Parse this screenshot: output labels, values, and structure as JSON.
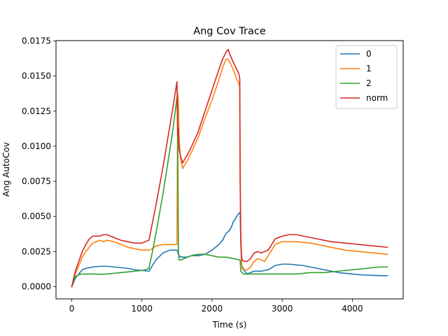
{
  "chart_data": {
    "type": "line",
    "title": "Ang Cov Trace",
    "xlabel": "Time (s)",
    "ylabel": "Ang AutoCov",
    "xlim": [
      -225,
      4725
    ],
    "ylim": [
      -0.000875,
      0.017525
    ],
    "xticks": [
      0,
      1000,
      2000,
      3000,
      4000
    ],
    "xtick_labels": [
      "0",
      "1000",
      "2000",
      "3000",
      "4000"
    ],
    "yticks": [
      0.0,
      0.0025,
      0.005,
      0.0075,
      0.01,
      0.0125,
      0.015,
      0.0175
    ],
    "ytick_labels": [
      "0.0000",
      "0.0025",
      "0.0050",
      "0.0075",
      "0.0100",
      "0.0125",
      "0.0150",
      "0.0175"
    ],
    "grid": false,
    "legend_position": "top-right",
    "series": [
      {
        "name": "0",
        "color": "#1f77b4",
        "x": [
          0,
          50,
          100,
          150,
          200,
          300,
          400,
          500,
          600,
          700,
          800,
          900,
          1000,
          1100,
          1150,
          1200,
          1300,
          1400,
          1450,
          1500,
          1510,
          1520,
          1530,
          1560,
          1600,
          1650,
          1700,
          1800,
          1900,
          2000,
          2050,
          2100,
          2150,
          2200,
          2250,
          2280,
          2300,
          2330,
          2350,
          2380,
          2400,
          2410,
          2420,
          2450,
          2500,
          2550,
          2600,
          2700,
          2800,
          2900,
          3000,
          3100,
          3200,
          3300,
          3400,
          3500,
          3600,
          3700,
          3800,
          3900,
          4000,
          4100,
          4200,
          4300,
          4400,
          4500
        ],
        "y": [
          0.0,
          0.0006,
          0.0009,
          0.0012,
          0.0013,
          0.0014,
          0.00145,
          0.00145,
          0.0014,
          0.00135,
          0.0013,
          0.0012,
          0.00115,
          0.0011,
          0.0015,
          0.0019,
          0.0024,
          0.0026,
          0.0026,
          0.0026,
          0.0025,
          0.0023,
          0.0022,
          0.0021,
          0.0021,
          0.0021,
          0.0022,
          0.0022,
          0.0023,
          0.0026,
          0.0028,
          0.003,
          0.0033,
          0.0038,
          0.004,
          0.0043,
          0.0046,
          0.0048,
          0.005,
          0.0052,
          0.0053,
          0.003,
          0.0016,
          0.0012,
          0.0009,
          0.001,
          0.0011,
          0.0011,
          0.0012,
          0.0015,
          0.0016,
          0.0016,
          0.00155,
          0.0015,
          0.0014,
          0.0013,
          0.0012,
          0.0011,
          0.001,
          0.00095,
          0.0009,
          0.00085,
          0.00082,
          0.0008,
          0.00078,
          0.00078
        ]
      },
      {
        "name": "1",
        "color": "#ff7f0e",
        "x": [
          0,
          50,
          100,
          150,
          200,
          250,
          300,
          350,
          400,
          450,
          500,
          600,
          700,
          800,
          900,
          1000,
          1100,
          1150,
          1200,
          1300,
          1400,
          1500,
          1510,
          1520,
          1530,
          1550,
          1580,
          1600,
          1650,
          1700,
          1800,
          1900,
          2000,
          2100,
          2150,
          2200,
          2230,
          2250,
          2300,
          2350,
          2380,
          2395,
          2400,
          2410,
          2420,
          2430,
          2450,
          2500,
          2550,
          2600,
          2650,
          2700,
          2750,
          2800,
          2850,
          2900,
          3000,
          3100,
          3200,
          3300,
          3400,
          3500,
          3700,
          3900,
          4100,
          4300,
          4500
        ],
        "y": [
          0.0,
          0.0009,
          0.0015,
          0.0021,
          0.0025,
          0.0028,
          0.0031,
          0.0032,
          0.0033,
          0.0032,
          0.0033,
          0.0032,
          0.003,
          0.0028,
          0.0027,
          0.0026,
          0.0026,
          0.0027,
          0.0029,
          0.003,
          0.003,
          0.003,
          0.0138,
          0.0132,
          0.0105,
          0.0092,
          0.0084,
          0.0086,
          0.009,
          0.0095,
          0.0106,
          0.012,
          0.0133,
          0.0148,
          0.0156,
          0.0162,
          0.0162,
          0.016,
          0.0155,
          0.0148,
          0.0145,
          0.0142,
          0.0075,
          0.003,
          0.0018,
          0.0013,
          0.0012,
          0.0012,
          0.0014,
          0.0018,
          0.002,
          0.0019,
          0.0018,
          0.0022,
          0.0026,
          0.003,
          0.0032,
          0.0032,
          0.0032,
          0.00315,
          0.0031,
          0.003,
          0.0028,
          0.0026,
          0.0025,
          0.0024,
          0.0023
        ]
      },
      {
        "name": "2",
        "color": "#2ca02c",
        "x": [
          0,
          50,
          100,
          150,
          200,
          300,
          400,
          500,
          600,
          700,
          800,
          900,
          1000,
          1050,
          1100,
          1150,
          1200,
          1300,
          1400,
          1450,
          1500,
          1510,
          1520,
          1530,
          1560,
          1600,
          1650,
          1700,
          1800,
          1900,
          2000,
          2100,
          2200,
          2300,
          2390,
          2400,
          2410,
          2450,
          2500,
          2550,
          2600,
          2800,
          3000,
          3200,
          3400,
          3600,
          3800,
          4000,
          4200,
          4400,
          4500
        ],
        "y": [
          0.0,
          0.0007,
          0.00085,
          0.0009,
          0.0009,
          0.0009,
          0.00088,
          0.0009,
          0.00095,
          0.001,
          0.00105,
          0.0011,
          0.00115,
          0.0012,
          0.0013,
          0.0025,
          0.0038,
          0.0066,
          0.0098,
          0.0115,
          0.0135,
          0.0113,
          0.0025,
          0.0019,
          0.0019,
          0.002,
          0.0021,
          0.0022,
          0.0023,
          0.0023,
          0.0022,
          0.0021,
          0.0021,
          0.002,
          0.0019,
          0.0019,
          0.0011,
          0.0009,
          0.0009,
          0.0009,
          0.0009,
          0.0009,
          0.0009,
          0.0009,
          0.001,
          0.001,
          0.0011,
          0.0012,
          0.0013,
          0.0014,
          0.0014
        ]
      },
      {
        "name": "norm",
        "color": "#d62728",
        "x": [
          0,
          50,
          100,
          150,
          200,
          250,
          300,
          350,
          400,
          450,
          500,
          600,
          700,
          800,
          900,
          1000,
          1100,
          1200,
          1300,
          1400,
          1450,
          1500,
          1510,
          1520,
          1530,
          1550,
          1580,
          1600,
          1650,
          1700,
          1800,
          1900,
          2000,
          2100,
          2150,
          2200,
          2230,
          2250,
          2300,
          2350,
          2380,
          2395,
          2400,
          2410,
          2420,
          2430,
          2450,
          2500,
          2550,
          2600,
          2650,
          2700,
          2750,
          2800,
          2850,
          2900,
          3000,
          3100,
          3200,
          3300,
          3400,
          3500,
          3700,
          3900,
          4100,
          4300,
          4500
        ],
        "y": [
          0.0,
          0.0011,
          0.0018,
          0.0025,
          0.003,
          0.0034,
          0.0036,
          0.0036,
          0.0036,
          0.0037,
          0.0037,
          0.0035,
          0.0033,
          0.0032,
          0.0031,
          0.0031,
          0.0033,
          0.0058,
          0.0085,
          0.0115,
          0.013,
          0.0146,
          0.0108,
          0.0113,
          0.0098,
          0.0093,
          0.0088,
          0.009,
          0.0094,
          0.0099,
          0.011,
          0.0125,
          0.014,
          0.0155,
          0.0162,
          0.0167,
          0.0169,
          0.0166,
          0.016,
          0.0155,
          0.0152,
          0.0148,
          0.0082,
          0.0035,
          0.0022,
          0.0019,
          0.0018,
          0.0018,
          0.002,
          0.0024,
          0.0025,
          0.0024,
          0.0025,
          0.0026,
          0.003,
          0.0034,
          0.0036,
          0.0037,
          0.0037,
          0.0036,
          0.0035,
          0.0034,
          0.0032,
          0.0031,
          0.003,
          0.0029,
          0.0028
        ]
      }
    ]
  }
}
